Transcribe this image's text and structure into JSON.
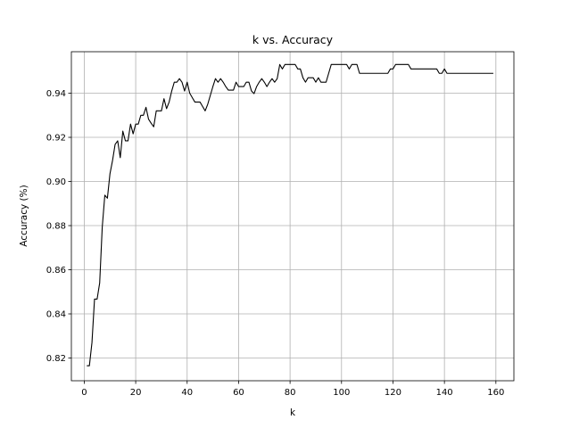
{
  "chart_data": {
    "type": "line",
    "title": "k vs. Accuracy",
    "xlabel": "k",
    "ylabel": "Accuracy (%)",
    "xlim": [
      -5,
      167
    ],
    "ylim": [
      0.8097,
      0.9588
    ],
    "xticks": [
      0,
      20,
      40,
      60,
      80,
      100,
      120,
      140,
      160
    ],
    "yticks": [
      0.82,
      0.84,
      0.86,
      0.88,
      0.9,
      0.92,
      0.94
    ],
    "ytick_labels": [
      "0.82",
      "0.84",
      "0.86",
      "0.88",
      "0.90",
      "0.92",
      "0.94"
    ],
    "grid": true,
    "legend": "none",
    "line_color": "#000000",
    "grid_color": "#b0b0b0",
    "series": [
      {
        "x": [
          1,
          2,
          3,
          4,
          5,
          6,
          7,
          8,
          9,
          10,
          11,
          12,
          13,
          14,
          15,
          16,
          17,
          18,
          19,
          20,
          21,
          22,
          23,
          24,
          25,
          26,
          27,
          28,
          29,
          30,
          31,
          32,
          33,
          34,
          35,
          36,
          37,
          38,
          39,
          40,
          41,
          42,
          43,
          44,
          45,
          46,
          47,
          48,
          49,
          50,
          51,
          52,
          53,
          54,
          55,
          56,
          57,
          58,
          59,
          60,
          61,
          62,
          63,
          64,
          65,
          66,
          67,
          68,
          69,
          70,
          71,
          72,
          73,
          74,
          75,
          76,
          77,
          78,
          79,
          80,
          81,
          82,
          83,
          84,
          85,
          86,
          87,
          88,
          89,
          90,
          91,
          92,
          93,
          94,
          95,
          96,
          97,
          98,
          99,
          100,
          101,
          102,
          103,
          104,
          105,
          106,
          107,
          108,
          109,
          110,
          111,
          112,
          113,
          114,
          115,
          116,
          117,
          118,
          119,
          120,
          121,
          122,
          123,
          124,
          125,
          126,
          127,
          128,
          129,
          130,
          131,
          132,
          133,
          134,
          135,
          136,
          137,
          138,
          139,
          140,
          141,
          142,
          143,
          144,
          145,
          146,
          147,
          148,
          149,
          150,
          151,
          152,
          153,
          154,
          155,
          156,
          157,
          158,
          159
        ],
        "y": [
          0.8165,
          0.8165,
          0.827,
          0.8467,
          0.8467,
          0.854,
          0.8793,
          0.8938,
          0.8924,
          0.9035,
          0.9095,
          0.9168,
          0.9184,
          0.9108,
          0.9228,
          0.9184,
          0.9184,
          0.926,
          0.9216,
          0.926,
          0.926,
          0.93,
          0.93,
          0.9336,
          0.9282,
          0.9264,
          0.9248,
          0.932,
          0.932,
          0.932,
          0.9375,
          0.933,
          0.936,
          0.941,
          0.945,
          0.945,
          0.9466,
          0.945,
          0.941,
          0.945,
          0.94,
          0.938,
          0.936,
          0.936,
          0.936,
          0.934,
          0.932,
          0.935,
          0.939,
          0.943,
          0.9466,
          0.945,
          0.9466,
          0.945,
          0.943,
          0.9414,
          0.9414,
          0.9414,
          0.945,
          0.943,
          0.943,
          0.943,
          0.945,
          0.945,
          0.941,
          0.9398,
          0.943,
          0.945,
          0.9466,
          0.945,
          0.943,
          0.945,
          0.9466,
          0.945,
          0.9466,
          0.953,
          0.951,
          0.953,
          0.953,
          0.953,
          0.953,
          0.953,
          0.951,
          0.951,
          0.947,
          0.945,
          0.947,
          0.947,
          0.947,
          0.945,
          0.947,
          0.945,
          0.945,
          0.945,
          0.949,
          0.953,
          0.953,
          0.953,
          0.953,
          0.953,
          0.953,
          0.953,
          0.951,
          0.953,
          0.953,
          0.953,
          0.949,
          0.949,
          0.949,
          0.949,
          0.949,
          0.949,
          0.949,
          0.949,
          0.949,
          0.949,
          0.949,
          0.949,
          0.951,
          0.951,
          0.953,
          0.953,
          0.953,
          0.953,
          0.953,
          0.953,
          0.951,
          0.951,
          0.951,
          0.951,
          0.951,
          0.951,
          0.951,
          0.951,
          0.951,
          0.951,
          0.951,
          0.949,
          0.949,
          0.951,
          0.949,
          0.949,
          0.949,
          0.949,
          0.949,
          0.949,
          0.949,
          0.949,
          0.949,
          0.949,
          0.949,
          0.949,
          0.949,
          0.949,
          0.949,
          0.949,
          0.949,
          0.949,
          0.949
        ]
      }
    ]
  }
}
